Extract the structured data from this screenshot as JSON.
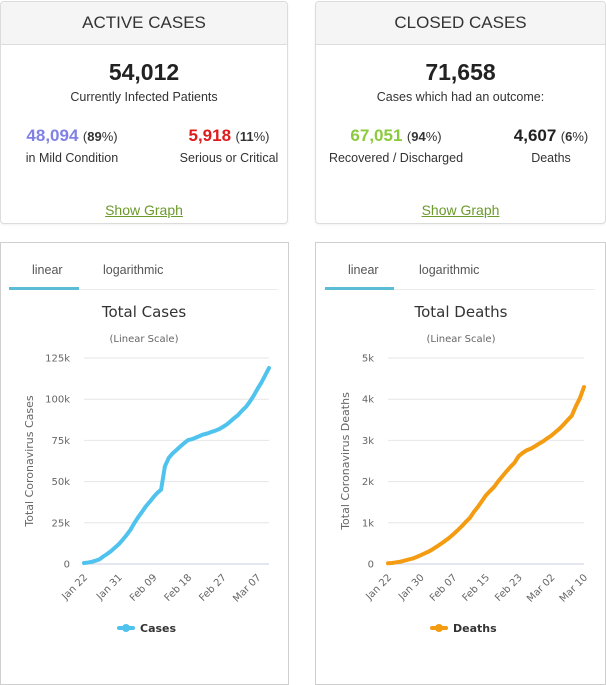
{
  "active_cases": {
    "heading": "ACTIVE CASES",
    "total": "54,012",
    "total_caption": "Currently Infected Patients",
    "mild": {
      "number": "48,094",
      "pct_open": "(",
      "pct": "89",
      "pct_close": "%)",
      "label": "in Mild Condition",
      "color": "#8080e6"
    },
    "serious": {
      "number": "5,918",
      "pct_open": "(",
      "pct": "11",
      "pct_close": "%)",
      "label": "Serious or Critical",
      "color": "#e01b1b"
    },
    "show_graph": "Show Graph"
  },
  "closed_cases": {
    "heading": "CLOSED CASES",
    "total": "71,658",
    "total_caption": "Cases which had an outcome:",
    "recovered": {
      "number": "67,051",
      "pct_open": "(",
      "pct": "94",
      "pct_close": "%)",
      "label": "Recovered / Discharged",
      "color": "#8aca3c"
    },
    "deaths": {
      "number": "4,607",
      "pct_open": "(",
      "pct": "6",
      "pct_close": "%)",
      "label": "Deaths",
      "color": "#222222"
    },
    "show_graph": "Show Graph"
  },
  "tabs": {
    "linear": "linear",
    "logarithmic": "logarithmic",
    "active": "linear"
  },
  "chart_data": [
    {
      "type": "line",
      "title": "Total Cases",
      "subtitle": "(Linear Scale)",
      "xlabel": "",
      "ylabel": "Total Coronavirus Cases",
      "ylim": [
        0,
        125000
      ],
      "yticks": [
        0,
        25000,
        50000,
        75000,
        100000,
        125000
      ],
      "ytick_labels": [
        "0",
        "25k",
        "50k",
        "75k",
        "100k",
        "125k"
      ],
      "grid": true,
      "color": "#4fc3ee",
      "legend": [
        {
          "name": "Cases",
          "color": "#4fc3ee"
        }
      ],
      "legend_position": "bottom-center",
      "xtick_labels": [
        "Jan 22",
        "Jan 31",
        "Feb 09",
        "Feb 18",
        "Feb 27",
        "Mar 07"
      ],
      "xtick_index": [
        0,
        9,
        18,
        27,
        36,
        45
      ],
      "series": [
        {
          "name": "Cases",
          "x_start": "Jan 22",
          "values": [
            580,
            845,
            1317,
            2015,
            2800,
            4581,
            6058,
            7813,
            9823,
            11950,
            14553,
            17391,
            20630,
            24545,
            28266,
            31439,
            34876,
            37552,
            40553,
            43099,
            45134,
            59287,
            64438,
            67100,
            69197,
            71329,
            73332,
            75184,
            75700,
            76677,
            77673,
            78651,
            79205,
            80087,
            80828,
            81820,
            83112,
            84615,
            86604,
            88585,
            90443,
            93016,
            95314,
            98425,
            102050,
            106099,
            109991,
            114381,
            118948
          ]
        }
      ]
    },
    {
      "type": "line",
      "title": "Total Deaths",
      "subtitle": "(Linear Scale)",
      "xlabel": "",
      "ylabel": "Total Coronavirus Deaths",
      "ylim": [
        0,
        5000
      ],
      "yticks": [
        0,
        1000,
        2000,
        3000,
        4000,
        5000
      ],
      "ytick_labels": [
        "0",
        "1k",
        "2k",
        "3k",
        "4k",
        "5k"
      ],
      "grid": true,
      "color": "#f39c12",
      "legend": [
        {
          "name": "Deaths",
          "color": "#f39c12"
        }
      ],
      "legend_position": "bottom-center",
      "xtick_labels": [
        "Jan 22",
        "Jan 30",
        "Feb 07",
        "Feb 15",
        "Feb 23",
        "Mar 02",
        "Mar 10"
      ],
      "xtick_index": [
        0,
        8,
        16,
        24,
        32,
        40,
        48
      ],
      "series": [
        {
          "name": "Deaths",
          "x_start": "Jan 22",
          "values": [
            17,
            25,
            41,
            56,
            80,
            106,
            132,
            170,
            213,
            259,
            304,
            362,
            426,
            492,
            565,
            638,
            724,
            813,
            910,
            1018,
            1115,
            1261,
            1383,
            1526,
            1669,
            1775,
            1873,
            2009,
            2126,
            2247,
            2360,
            2460,
            2618,
            2699,
            2763,
            2800,
            2858,
            2923,
            2977,
            3050,
            3117,
            3202,
            3285,
            3387,
            3494,
            3599,
            3827,
            4025,
            4296
          ]
        }
      ]
    }
  ]
}
